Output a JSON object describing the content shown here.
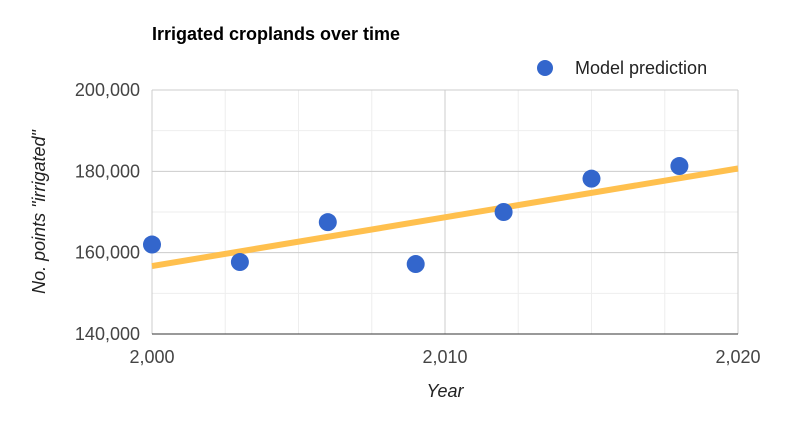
{
  "chart_data": {
    "type": "scatter",
    "title": "Irrigated croplands over time",
    "xlabel": "Year",
    "ylabel": "No. points \"irrigated\"",
    "xlim": [
      2000,
      2020
    ],
    "ylim": [
      140000,
      200000
    ],
    "x_ticks": [
      2000,
      2010,
      2020
    ],
    "x_tick_labels": [
      "2,000",
      "2,010",
      "2,020"
    ],
    "y_ticks": [
      140000,
      160000,
      180000,
      200000
    ],
    "y_tick_labels": [
      "140,000",
      "160,000",
      "180,000",
      "200,000"
    ],
    "grid": true,
    "legend_position": "top-right",
    "series": [
      {
        "name": "Model prediction",
        "color": "#3366cc",
        "x": [
          2000,
          2003,
          2006,
          2009,
          2012,
          2015,
          2018
        ],
        "y": [
          162000,
          157700,
          167500,
          157200,
          170000,
          178200,
          181300
        ]
      }
    ],
    "trendline": {
      "color": "#ffc04e",
      "x": [
        2000,
        2020
      ],
      "y": [
        156700,
        180700
      ]
    }
  }
}
